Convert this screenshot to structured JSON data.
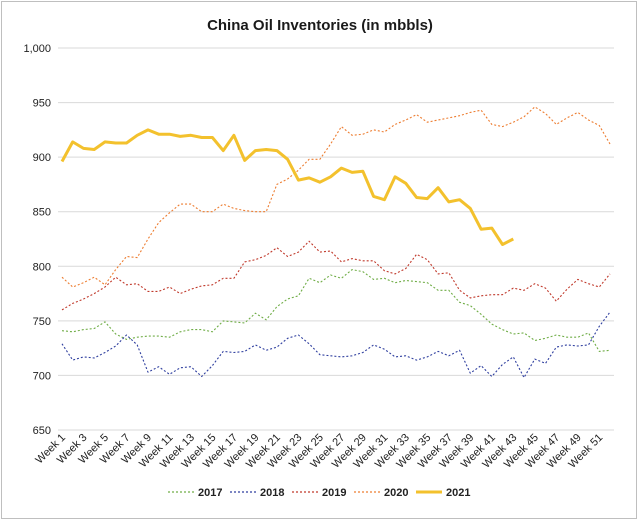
{
  "chart_data": {
    "type": "line",
    "title": "China Oil Inventories (in mbbls)",
    "xlabel": "",
    "ylabel": "",
    "ylim": [
      650,
      1000
    ],
    "yticks": [
      650,
      700,
      750,
      800,
      850,
      900,
      950,
      "1,000"
    ],
    "grid": true,
    "legend_position": "bottom",
    "x_tick_labels": [
      "Week 1",
      "Week 3",
      "Week 5",
      "Week 7",
      "Week 9",
      "Week 11",
      "Week 13",
      "Week 15",
      "Week 17",
      "Week 19",
      "Week 21",
      "Week 23",
      "Week 25",
      "Week 27",
      "Week 29",
      "Week 31",
      "Week 33",
      "Week 35",
      "Week 37",
      "Week 39",
      "Week 41",
      "Week 43",
      "Week 45",
      "Week 47",
      "Week 49",
      "Week 51"
    ],
    "x_weeks": [
      1,
      2,
      3,
      4,
      5,
      6,
      7,
      8,
      9,
      10,
      11,
      12,
      13,
      14,
      15,
      16,
      17,
      18,
      19,
      20,
      21,
      22,
      23,
      24,
      25,
      26,
      27,
      28,
      29,
      30,
      31,
      32,
      33,
      34,
      35,
      36,
      37,
      38,
      39,
      40,
      41,
      42,
      43,
      44,
      45,
      46,
      47,
      48,
      49,
      50,
      51,
      52
    ],
    "series": [
      {
        "name": "2017",
        "color": "#70ad47",
        "style": "dotted",
        "values": [
          741,
          740,
          742,
          743,
          749,
          738,
          733,
          735,
          736,
          736,
          735,
          740,
          742,
          742,
          740,
          750,
          749,
          748,
          757,
          751,
          763,
          770,
          773,
          789,
          785,
          792,
          789,
          797,
          795,
          788,
          789,
          785,
          787,
          786,
          785,
          778,
          778,
          767,
          764,
          756,
          747,
          742,
          738,
          739,
          732,
          734,
          737,
          735,
          735,
          739,
          722,
          723
        ]
      },
      {
        "name": "2018",
        "color": "#2f3f9f",
        "style": "dotted",
        "values": [
          729,
          714,
          717,
          716,
          721,
          727,
          737,
          728,
          703,
          708,
          701,
          707,
          708,
          699,
          709,
          722,
          721,
          722,
          728,
          723,
          726,
          734,
          737,
          729,
          719,
          718,
          717,
          718,
          721,
          728,
          724,
          717,
          718,
          714,
          717,
          722,
          718,
          723,
          702,
          709,
          699,
          710,
          717,
          698,
          715,
          711,
          726,
          728,
          727,
          728,
          745,
          758
        ]
      },
      {
        "name": "2019",
        "color": "#c0392b",
        "style": "dotted",
        "values": [
          760,
          766,
          770,
          775,
          781,
          790,
          783,
          784,
          777,
          777,
          781,
          775,
          779,
          782,
          783,
          789,
          789,
          804,
          806,
          810,
          817,
          809,
          813,
          823,
          813,
          814,
          804,
          807,
          805,
          805,
          796,
          793,
          798,
          811,
          806,
          793,
          794,
          778,
          771,
          773,
          774,
          774,
          780,
          778,
          784,
          780,
          768,
          779,
          788,
          784,
          781,
          793
        ]
      },
      {
        "name": "2020",
        "color": "#ed7d31",
        "style": "dotted",
        "values": [
          790,
          781,
          785,
          790,
          783,
          797,
          809,
          808,
          825,
          840,
          849,
          857,
          857,
          850,
          850,
          857,
          853,
          851,
          850,
          850,
          875,
          880,
          888,
          898,
          898,
          912,
          928,
          920,
          921,
          925,
          923,
          930,
          934,
          939,
          932,
          934,
          936,
          938,
          941,
          943,
          930,
          928,
          932,
          937,
          946,
          940,
          930,
          936,
          941,
          934,
          929,
          912
        ]
      },
      {
        "name": "2021",
        "color": "#f3c12d",
        "style": "solid",
        "values": [
          896,
          914,
          908,
          907,
          914,
          913,
          913,
          920,
          925,
          921,
          921,
          919,
          920,
          918,
          918,
          906,
          920,
          897,
          906,
          907,
          906,
          898,
          879,
          881,
          877,
          882,
          890,
          886,
          887,
          864,
          861,
          882,
          876,
          863,
          862,
          872,
          859,
          861,
          853,
          834,
          835,
          820,
          825
        ]
      }
    ]
  }
}
